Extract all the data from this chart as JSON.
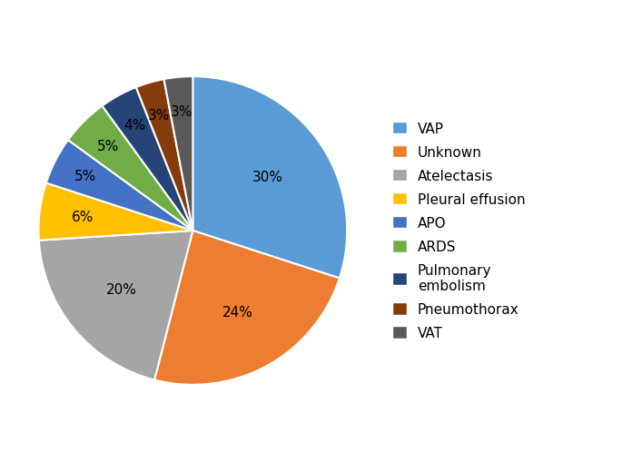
{
  "labels": [
    "VAP",
    "Unknown",
    "Atelectasis",
    "Pleural effusion",
    "APO",
    "ARDS",
    "Pulmonary\nembolism",
    "Pneumothorax",
    "VAT"
  ],
  "legend_labels": [
    "VAP",
    "Unknown",
    "Atelectasis",
    "Pleural effusion",
    "APO",
    "ARDS",
    "Pulmonary\nembolism",
    "Pneumothorax",
    "VAT"
  ],
  "values": [
    30,
    24,
    20,
    6,
    5,
    5,
    4,
    3,
    3
  ],
  "colors": [
    "#5B9BD5",
    "#ED7D31",
    "#A5A5A5",
    "#FFC000",
    "#4472C4",
    "#70AD47",
    "#264478",
    "#843C0C",
    "#595959"
  ],
  "pct_labels": [
    "30%",
    "24%",
    "20%",
    "6%",
    "5%",
    "5%",
    "4%",
    "3%",
    "3%"
  ],
  "startangle": 90,
  "figsize": [
    6.85,
    5.1
  ],
  "dpi": 100
}
